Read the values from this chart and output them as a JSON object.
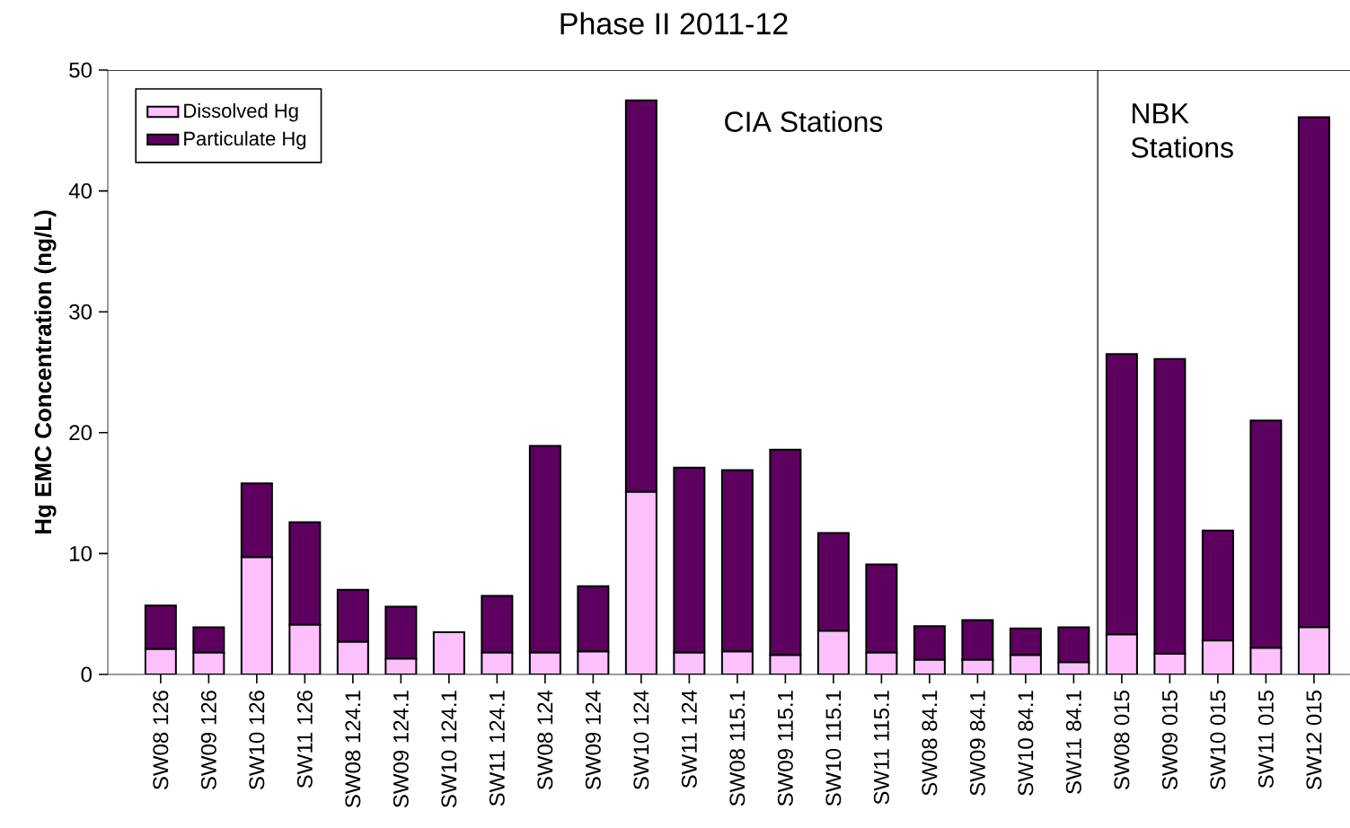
{
  "chart_data": {
    "type": "bar",
    "title": "Phase II 2011-12",
    "ylabel": "Hg EMC Concentration (ng/L)",
    "categories": [
      "SW08 126",
      "SW09 126",
      "SW10 126",
      "SW11 126",
      "SW08 124.1",
      "SW09 124.1",
      "SW10 124.1",
      "SW11 124.1",
      "SW08 124",
      "SW09 124",
      "SW10 124",
      "SW11 124",
      "SW08 115.1",
      "SW09 115.1",
      "SW10 115.1",
      "SW11 115.1",
      "SW08 84.1",
      "SW09 84.1",
      "SW10 84.1",
      "SW11 84.1",
      "SW08 015",
      "SW09 015",
      "SW10 015",
      "SW11 015",
      "SW12 015"
    ],
    "series": [
      {
        "name": "Dissolved Hg",
        "color": "#fcc0fc",
        "values": [
          2.1,
          1.8,
          9.7,
          4.1,
          2.7,
          1.3,
          3.5,
          1.8,
          1.8,
          1.9,
          15.1,
          1.8,
          1.9,
          1.6,
          3.6,
          1.8,
          1.2,
          1.2,
          1.6,
          1.0,
          3.3,
          1.7,
          2.8,
          2.2,
          3.9
        ]
      },
      {
        "name": "Particulate Hg",
        "color": "#5e0060",
        "values": [
          3.6,
          2.1,
          6.1,
          8.5,
          4.3,
          4.3,
          0,
          4.7,
          17.1,
          5.4,
          32.4,
          15.3,
          15.0,
          17.0,
          8.1,
          7.3,
          2.8,
          3.3,
          2.2,
          2.9,
          23.2,
          24.4,
          9.1,
          18.8,
          42.2
        ]
      }
    ],
    "stacked": true,
    "ylim": [
      0,
      50
    ],
    "yticks": [
      0,
      10,
      20,
      30,
      40,
      50
    ],
    "legend": "top left",
    "annotations": [
      "CIA Stations",
      "NBK Stations"
    ]
  }
}
